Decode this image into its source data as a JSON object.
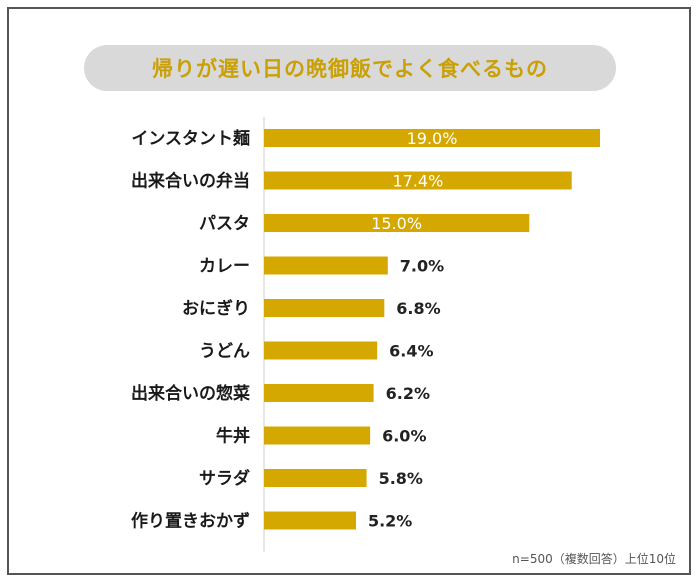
{
  "title": "帰りが遅い日の晩御飯でよく食べるもの",
  "note": "n=500（複数回答）上位10位",
  "colors": {
    "bar": "#d4a800",
    "title_text": "#c9a006",
    "title_bg": "#d9d9d9",
    "inside_label": "#ffffff",
    "outside_label": "#222222",
    "axis_line": "#cccccc",
    "frame": "#555555"
  },
  "chart_data": {
    "type": "bar",
    "orientation": "horizontal",
    "categories": [
      "インスタント麺",
      "出来合いの弁当",
      "パスタ",
      "カレー",
      "おにぎり",
      "うどん",
      "出来合いの惣菜",
      "牛丼",
      "サラダ",
      "作り置きおかず"
    ],
    "values": [
      19.0,
      17.4,
      15.0,
      7.0,
      6.8,
      6.4,
      6.2,
      6.0,
      5.8,
      5.2
    ],
    "value_labels": [
      "19.0%",
      "17.4%",
      "15.0%",
      "7.0%",
      "6.8%",
      "6.4%",
      "6.2%",
      "6.0%",
      "5.8%",
      "5.2%"
    ],
    "unit": "%",
    "legend": "none",
    "grid": false
  }
}
